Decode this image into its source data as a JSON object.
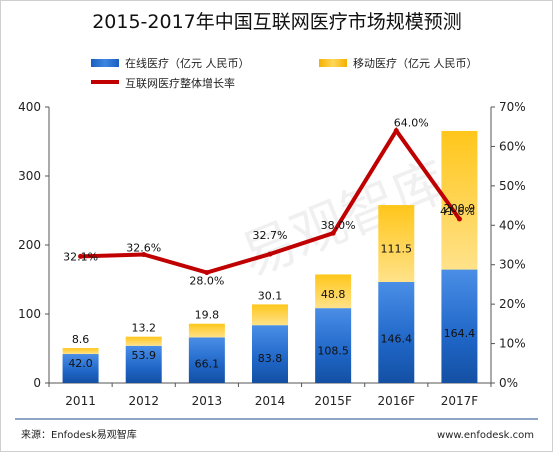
{
  "chart_data": {
    "type": "bar",
    "title": "2015-2017年中国互联网医疗市场规模预测",
    "categories": [
      "2011",
      "2012",
      "2013",
      "2014",
      "2015F",
      "2016F",
      "2017F"
    ],
    "series": [
      {
        "name": "在线医疗（亿元 人民币）",
        "type": "bar",
        "stack": "total",
        "axis": "left",
        "color": "#1f66c7",
        "values": [
          42.0,
          53.9,
          66.1,
          83.8,
          108.5,
          146.4,
          164.4
        ],
        "labels": [
          "42.0",
          "53.9",
          "66.1",
          "83.8",
          "108.5",
          "146.4",
          "164.4"
        ]
      },
      {
        "name": "移动医疗（亿元 人民币）",
        "type": "bar",
        "stack": "total",
        "axis": "left",
        "color": "#f6b800",
        "values": [
          8.6,
          13.2,
          19.8,
          30.1,
          48.8,
          111.5,
          200.9
        ],
        "labels": [
          "8.6",
          "13.2",
          "19.8",
          "30.1",
          "48.8",
          "111.5",
          "200.9"
        ]
      },
      {
        "name": "互联网医疗整体增长率",
        "type": "line",
        "axis": "right",
        "color": "#c00000",
        "values": [
          32.1,
          32.6,
          28.0,
          32.7,
          38.0,
          64.0,
          41.6
        ],
        "labels": [
          "32.1%",
          "32.6%",
          "28.0%",
          "32.7%",
          "38.0%",
          "64.0%",
          "41.6%"
        ]
      }
    ],
    "ylim": [
      0,
      400
    ],
    "y_ticks": [
      "0",
      "100",
      "200",
      "300",
      "400"
    ],
    "y2lim": [
      0,
      70
    ],
    "y2_ticks": [
      "0%",
      "10%",
      "20%",
      "30%",
      "40%",
      "50%",
      "60%",
      "70%"
    ],
    "grid": false,
    "legend_position": "top",
    "watermark": "易观智库",
    "footer": {
      "source": "来源：Enfodesk易观智库",
      "website": "www.enfodesk.com"
    }
  }
}
